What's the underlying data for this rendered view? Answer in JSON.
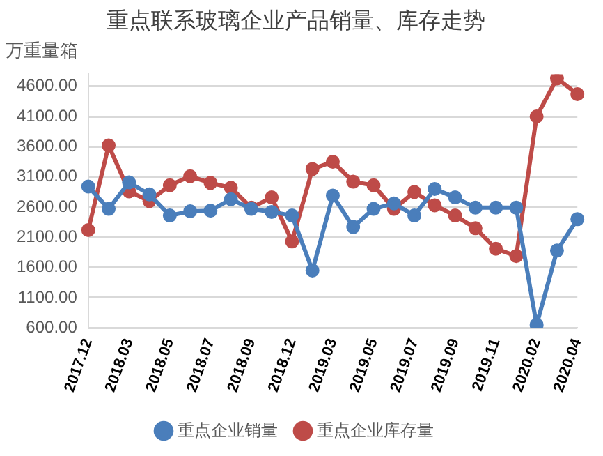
{
  "chart_data": {
    "type": "line",
    "title": "重点联系玻璃企业产品销量、库存走势",
    "ylabel": "万重量箱",
    "categories": [
      "2017.12",
      null,
      "2018.03",
      null,
      "2018.05",
      null,
      "2018.07",
      null,
      "2018.09",
      null,
      "2018.12",
      null,
      "2019.03",
      null,
      "2019.05",
      null,
      "2019.07",
      null,
      "2019.09",
      null,
      "2019.11",
      null,
      "2020.02",
      null,
      "2020.04"
    ],
    "series": [
      {
        "name": "重点企业销量",
        "color": "#4a7ebb",
        "values": [
          2940,
          2570,
          3010,
          2810,
          2460,
          2530,
          2540,
          2730,
          2570,
          2520,
          2460,
          1550,
          2790,
          2270,
          2570,
          2660,
          2460,
          2900,
          2760,
          2590,
          2590,
          2590,
          650,
          1880,
          2400
        ]
      },
      {
        "name": "重点企业库存量",
        "color": "#be4b48",
        "values": [
          2220,
          3620,
          2860,
          2700,
          2960,
          3110,
          3000,
          2920,
          2590,
          2760,
          2030,
          3230,
          3350,
          3020,
          2960,
          2570,
          2850,
          2630,
          2460,
          2250,
          1910,
          1790,
          4100,
          4730,
          4470
        ]
      }
    ],
    "ylim": [
      600,
      4800
    ],
    "yticks": [
      {
        "value": 600,
        "label": "600.00"
      },
      {
        "value": 1100,
        "label": "1100.00"
      },
      {
        "value": 1600,
        "label": "1600.00"
      },
      {
        "value": 2100,
        "label": "2100.00"
      },
      {
        "value": 2600,
        "label": "2600.00"
      },
      {
        "value": 3100,
        "label": "3100.00"
      },
      {
        "value": 3600,
        "label": "3600.00"
      },
      {
        "value": 4100,
        "label": "4100.00"
      },
      {
        "value": 4600,
        "label": "4600.00"
      }
    ],
    "grid": "y",
    "legend": "bottom",
    "marker": "circle",
    "line_style": "solid"
  }
}
